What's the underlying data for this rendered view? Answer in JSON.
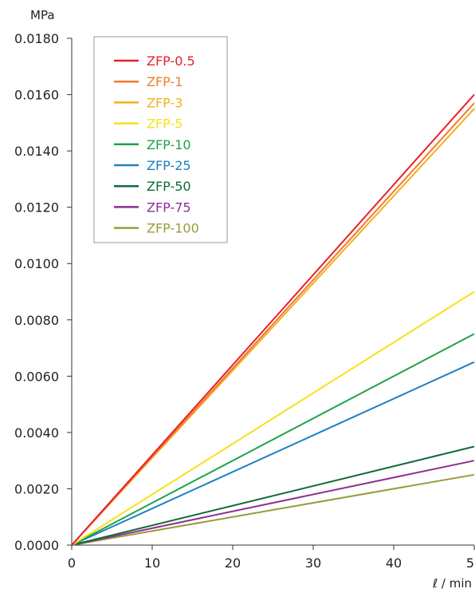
{
  "chart_data": {
    "type": "line",
    "title": "",
    "ylabel": "MPa",
    "xlabel": "ℓ / min",
    "xlim": [
      0,
      50
    ],
    "ylim": [
      0,
      0.018
    ],
    "xticks": [
      "0",
      "10",
      "20",
      "30",
      "40",
      "50"
    ],
    "xtick_values": [
      0,
      10,
      20,
      30,
      40,
      50
    ],
    "yticks": [
      "0.0000",
      "0.0020",
      "0.0040",
      "0.0060",
      "0.0080",
      "0.0100",
      "0.0120",
      "0.0140",
      "0.0160",
      "0.0180"
    ],
    "ytick_values": [
      0,
      0.002,
      0.004,
      0.006,
      0.008,
      0.01,
      0.012,
      0.014,
      0.016,
      0.018
    ],
    "grid": false,
    "legend_position": "top-left",
    "series": [
      {
        "name": "ZFP-0.5",
        "color": "#e8202a",
        "x": [
          0,
          50
        ],
        "y": [
          0,
          0.016
        ]
      },
      {
        "name": "ZFP-1",
        "color": "#f07a30",
        "x": [
          0,
          50
        ],
        "y": [
          0,
          0.0157
        ]
      },
      {
        "name": "ZFP-3",
        "color": "#f2b01e",
        "x": [
          0,
          50
        ],
        "y": [
          0,
          0.0155
        ]
      },
      {
        "name": "ZFP-5",
        "color": "#f7e11a",
        "x": [
          0,
          50
        ],
        "y": [
          0,
          0.009
        ]
      },
      {
        "name": "ZFP-10",
        "color": "#1fa24a",
        "x": [
          0,
          50
        ],
        "y": [
          0,
          0.0075
        ]
      },
      {
        "name": "ZFP-25",
        "color": "#1f7fc2",
        "x": [
          0,
          50
        ],
        "y": [
          0,
          0.0065
        ]
      },
      {
        "name": "ZFP-50",
        "color": "#0f6b3a",
        "x": [
          0,
          50
        ],
        "y": [
          0,
          0.0035
        ]
      },
      {
        "name": "ZFP-75",
        "color": "#8e2f8f",
        "x": [
          0,
          50
        ],
        "y": [
          0,
          0.003
        ]
      },
      {
        "name": "ZFP-100",
        "color": "#9a9a3a",
        "x": [
          0,
          50
        ],
        "y": [
          0,
          0.0025
        ]
      }
    ]
  }
}
